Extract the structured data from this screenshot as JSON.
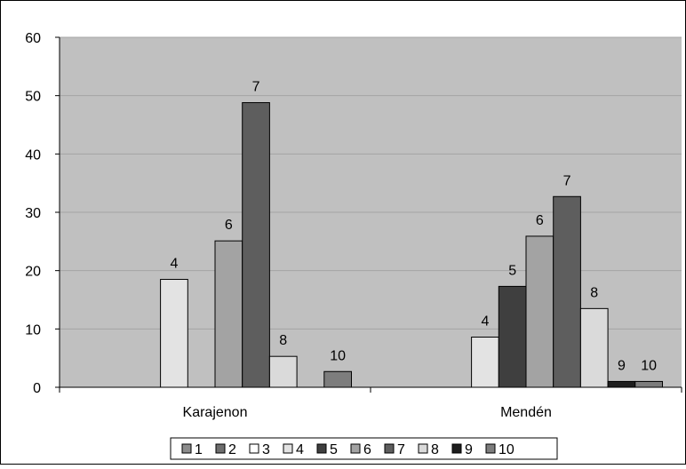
{
  "chart_data": {
    "type": "bar",
    "categories": [
      "Karajenon",
      "Mendén"
    ],
    "series": [
      {
        "name": "1",
        "values": [
          0,
          0
        ],
        "color": "#8c8c8c"
      },
      {
        "name": "2",
        "values": [
          0,
          0
        ],
        "color": "#6e6e6e"
      },
      {
        "name": "3",
        "values": [
          0,
          0
        ],
        "color": "#ffffff"
      },
      {
        "name": "4",
        "values": [
          18.5,
          8.6
        ],
        "color": "#e3e3e3"
      },
      {
        "name": "5",
        "values": [
          0,
          17.3
        ],
        "color": "#3f3f3f"
      },
      {
        "name": "6",
        "values": [
          25.1,
          25.9
        ],
        "color": "#a3a3a3"
      },
      {
        "name": "7",
        "values": [
          48.8,
          32.7
        ],
        "color": "#5e5e5e"
      },
      {
        "name": "8",
        "values": [
          5.3,
          13.5
        ],
        "color": "#dadada"
      },
      {
        "name": "9",
        "values": [
          0,
          1.0
        ],
        "color": "#1e1e1e"
      },
      {
        "name": "10",
        "values": [
          2.7,
          1.0
        ],
        "color": "#7d7d7d"
      }
    ],
    "data_labels": [
      {
        "category": "Karajenon",
        "series": "4",
        "text": "4"
      },
      {
        "category": "Karajenon",
        "series": "6",
        "text": "6"
      },
      {
        "category": "Karajenon",
        "series": "7",
        "text": "7"
      },
      {
        "category": "Karajenon",
        "series": "8",
        "text": "8"
      },
      {
        "category": "Karajenon",
        "series": "10",
        "text": "10"
      },
      {
        "category": "Mendén",
        "series": "4",
        "text": "4"
      },
      {
        "category": "Mendén",
        "series": "5",
        "text": "5"
      },
      {
        "category": "Mendén",
        "series": "6",
        "text": "6"
      },
      {
        "category": "Mendén",
        "series": "7",
        "text": "7"
      },
      {
        "category": "Mendén",
        "series": "8",
        "text": "8"
      },
      {
        "category": "Mendén",
        "series": "9",
        "text": "9"
      },
      {
        "category": "Mendén",
        "series": "10",
        "text": "10"
      }
    ],
    "y_ticks": [
      "0",
      "10",
      "20",
      "30",
      "40",
      "50",
      "60"
    ],
    "ylim": [
      0,
      60
    ],
    "grid": true,
    "legend_position": "bottom",
    "plot_background": "#c0c0c0",
    "title": "",
    "xlabel": "",
    "ylabel": ""
  }
}
